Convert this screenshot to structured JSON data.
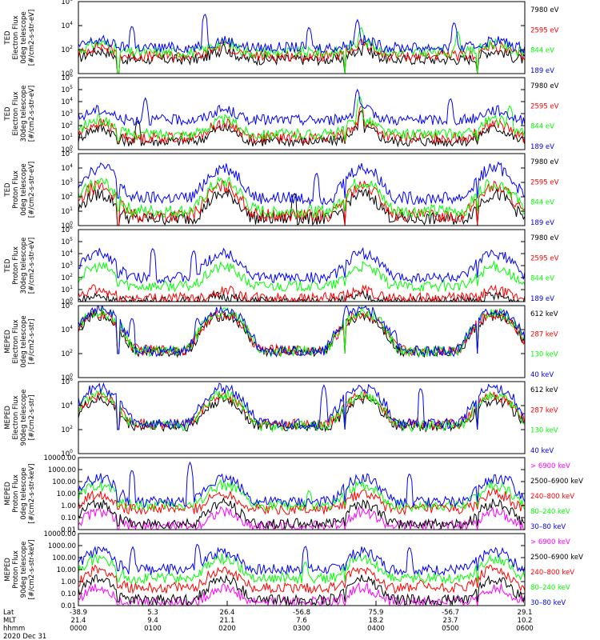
{
  "chart_data": {
    "type": "line",
    "x_start_hhmm": "0000",
    "x_end_hhmm": "0600",
    "colors": {
      "black": "#000000",
      "red": "#ff0000",
      "green": "#00ff00",
      "blue": "#0000ff",
      "magenta": "#ff00ff"
    },
    "x_axis": {
      "row_labels": [
        "Lat",
        "MLT",
        "hhmm"
      ],
      "date": "2020 Dec 31",
      "ticks": [
        {
          "lat": "-38.9",
          "mlt": "21.4",
          "hhmm": "0000"
        },
        {
          "lat": "5.3",
          "mlt": "9.4",
          "hhmm": "0100"
        },
        {
          "lat": "26.4",
          "mlt": "21.1",
          "hhmm": "0200"
        },
        {
          "lat": "-56.8",
          "mlt": "7.6",
          "hhmm": "0300"
        },
        {
          "lat": "75.9",
          "mlt": "18.2",
          "hhmm": "0400"
        },
        {
          "lat": "-56.7",
          "mlt": "23.7",
          "hhmm": "0500"
        },
        {
          "lat": "29.1",
          "mlt": "10.2",
          "hhmm": "0600"
        }
      ]
    },
    "panels": [
      {
        "id": "ted-electron-0deg",
        "ylabel": [
          "TED",
          "Electron Flux",
          "0deg telescope",
          "[#/cm2-s-str-eV]"
        ],
        "yscale": "log",
        "ylim": [
          1,
          1000000
        ],
        "tick_exps": [
          0,
          2,
          4,
          6
        ],
        "legend": [
          {
            "text": "7980 eV",
            "color": "#000000"
          },
          {
            "text": "2595 eV",
            "color": "#ff0000"
          },
          {
            "text": "844 eV",
            "color": "#00ff00"
          },
          {
            "text": "189 eV",
            "color": "#0000ff"
          }
        ],
        "series": [
          {
            "name": "7980 eV",
            "color": "#000000",
            "base": 15,
            "peak": 80,
            "floor": 0.3,
            "spikes": [
              [
                1.95,
                300
              ],
              [
                3.85,
                500
              ]
            ]
          },
          {
            "name": "2595 eV",
            "color": "#ff0000",
            "base": 30,
            "peak": 180,
            "floor": 0.4,
            "spikes": [
              [
                1.95,
                500
              ],
              [
                3.8,
                800
              ]
            ]
          },
          {
            "name": "844 eV",
            "color": "#00ff00",
            "base": 60,
            "peak": 350,
            "floor": 0.5,
            "spikes": [
              [
                3.8,
                8000
              ],
              [
                5.1,
                3000
              ]
            ]
          },
          {
            "name": "189 eV",
            "color": "#0000ff",
            "base": 150,
            "peak": 600,
            "floor": 150,
            "spikes": [
              [
                0.72,
                10000
              ],
              [
                1.7,
                100000
              ],
              [
                3.1,
                8000
              ],
              [
                3.75,
                30000
              ],
              [
                5.05,
                20000
              ]
            ]
          }
        ]
      },
      {
        "id": "ted-electron-30deg",
        "ylabel": [
          "TED",
          "Electron Flux",
          "30deg telescope",
          "[#/cm2-s-str-eV]"
        ],
        "yscale": "log",
        "ylim": [
          1,
          1000000
        ],
        "tick_exps": [
          0,
          1,
          2,
          3,
          4,
          5,
          6
        ],
        "legend": [
          {
            "text": "7980 eV",
            "color": "#000000"
          },
          {
            "text": "2595 eV",
            "color": "#ff0000"
          },
          {
            "text": "844 eV",
            "color": "#00ff00"
          },
          {
            "text": "189 eV",
            "color": "#0000ff"
          }
        ],
        "series": [
          {
            "name": "7980 eV",
            "color": "#000000",
            "base": 5,
            "peak": 60,
            "floor": 3,
            "spikes": [
              [
                0.8,
                300
              ],
              [
                3.8,
                2000
              ]
            ]
          },
          {
            "name": "2595 eV",
            "color": "#ff0000",
            "base": 10,
            "peak": 150,
            "floor": 4,
            "spikes": [
              [
                3.8,
                5000
              ]
            ]
          },
          {
            "name": "844 eV",
            "color": "#00ff00",
            "base": 20,
            "peak": 300,
            "floor": 5,
            "spikes": [
              [
                3.78,
                30000
              ],
              [
                5.8,
                5000
              ]
            ]
          },
          {
            "name": "189 eV",
            "color": "#0000ff",
            "base": 300,
            "peak": 2000,
            "floor": 300,
            "spikes": [
              [
                0.9,
                20000
              ],
              [
                3.75,
                100000
              ],
              [
                5.0,
                20000
              ]
            ]
          }
        ]
      },
      {
        "id": "ted-proton-0deg",
        "ylabel": [
          "TED",
          "Proton Flux",
          "0deg telescope",
          "[#/cm2-s-str-eV]"
        ],
        "yscale": "log",
        "ylim": [
          1,
          100000
        ],
        "tick_exps": [
          0,
          1,
          2,
          3,
          4,
          5
        ],
        "legend": [
          {
            "text": "7980 eV",
            "color": "#000000"
          },
          {
            "text": "2595 eV",
            "color": "#ff0000"
          },
          {
            "text": "844 eV",
            "color": "#00ff00"
          },
          {
            "text": "189 eV",
            "color": "#0000ff"
          }
        ],
        "series": [
          {
            "name": "7980 eV",
            "color": "#000000",
            "base": 3,
            "peak": 150,
            "floor": 0.5,
            "spikes": [
              [
                2.9,
                200
              ]
            ]
          },
          {
            "name": "2595 eV",
            "color": "#ff0000",
            "base": 5,
            "peak": 500,
            "floor": 0.6,
            "spikes": []
          },
          {
            "name": "844 eV",
            "color": "#00ff00",
            "base": 10,
            "peak": 1000,
            "floor": 10,
            "spikes": []
          },
          {
            "name": "189 eV",
            "color": "#0000ff",
            "base": 80,
            "peak": 10000,
            "floor": 80,
            "spikes": [
              [
                0.4,
                20000
              ],
              [
                3.2,
                5000
              ]
            ]
          }
        ]
      },
      {
        "id": "ted-proton-30deg",
        "ylabel": [
          "TED",
          "Proton Flux",
          "30deg telescope",
          "[#/cm2-s-str-eV]"
        ],
        "yscale": "log",
        "ylim": [
          1,
          1000000
        ],
        "tick_exps": [
          0,
          1,
          2,
          3,
          4,
          5,
          6
        ],
        "legend": [
          {
            "text": "7980 eV",
            "color": "#000000"
          },
          {
            "text": "2595 eV",
            "color": "#ff0000"
          },
          {
            "text": "844 eV",
            "color": "#00ff00"
          },
          {
            "text": "189 eV",
            "color": "#0000ff"
          }
        ],
        "series": [
          {
            "name": "7980 eV",
            "color": "#000000",
            "base": 1,
            "peak": 3,
            "floor": 0.5,
            "spikes": []
          },
          {
            "name": "2595 eV",
            "color": "#ff0000",
            "base": 2,
            "peak": 8,
            "floor": 0.6,
            "spikes": [
              [
                0.2,
                30
              ],
              [
                2.05,
                20
              ]
            ]
          },
          {
            "name": "844 eV",
            "color": "#00ff00",
            "base": 20,
            "peak": 800,
            "floor": 20,
            "spikes": []
          },
          {
            "name": "189 eV",
            "color": "#0000ff",
            "base": 100,
            "peak": 10000,
            "floor": 100,
            "spikes": [
              [
                1.0,
                30000
              ],
              [
                1.55,
                20000
              ]
            ]
          }
        ]
      },
      {
        "id": "meped-electron-0deg",
        "ylabel": [
          "MEPED",
          "Electron Flux",
          "0deg telescope",
          "[#/cm2-s-str]"
        ],
        "yscale": "log",
        "ylim": [
          1,
          1000000
        ],
        "tick_exps": [
          0,
          2,
          4,
          6
        ],
        "legend": [
          {
            "text": "612 keV",
            "color": "#000000"
          },
          {
            "text": "287 keV",
            "color": "#ff0000"
          },
          {
            "text": "130 keV",
            "color": "#00ff00"
          },
          {
            "text": "40 keV",
            "color": "#0000ff"
          }
        ],
        "series": [
          {
            "name": "612 keV",
            "color": "#000000",
            "base": 150,
            "peak": 150000,
            "floor": 100,
            "spikes": []
          },
          {
            "name": "287 keV",
            "color": "#ff0000",
            "base": 200,
            "peak": 200000,
            "floor": 100,
            "spikes": [
              [
                5.2,
                1000
              ]
            ]
          },
          {
            "name": "130 keV",
            "color": "#00ff00",
            "base": 150,
            "peak": 300000,
            "floor": 100,
            "spikes": []
          },
          {
            "name": "40 keV",
            "color": "#0000ff",
            "base": 150,
            "peak": 500000,
            "floor": 100,
            "spikes": [
              [
                0.72,
                100000
              ],
              [
                1.6,
                100000
              ],
              [
                3.6,
                1000000
              ],
              [
                4.25,
                10000
              ]
            ]
          }
        ]
      },
      {
        "id": "meped-electron-90deg",
        "ylabel": [
          "MEPED",
          "Electron Flux",
          "90deg telescope",
          "[#/cm2-s-str]"
        ],
        "yscale": "log",
        "ylim": [
          1,
          1000000
        ],
        "tick_exps": [
          0,
          2,
          4,
          6
        ],
        "legend": [
          {
            "text": "612 keV",
            "color": "#000000"
          },
          {
            "text": "287 keV",
            "color": "#ff0000"
          },
          {
            "text": "130 keV",
            "color": "#00ff00"
          },
          {
            "text": "40 keV",
            "color": "#0000ff"
          }
        ],
        "series": [
          {
            "name": "612 keV",
            "color": "#000000",
            "base": 200,
            "peak": 30000,
            "floor": 100,
            "spikes": []
          },
          {
            "name": "287 keV",
            "color": "#ff0000",
            "base": 300,
            "peak": 60000,
            "floor": 100,
            "spikes": []
          },
          {
            "name": "130 keV",
            "color": "#00ff00",
            "base": 200,
            "peak": 80000,
            "floor": 100,
            "spikes": []
          },
          {
            "name": "40 keV",
            "color": "#0000ff",
            "base": 300,
            "peak": 300000,
            "floor": 100,
            "spikes": [
              [
                3.3,
                500000
              ],
              [
                4.6,
                300000
              ],
              [
                5.5,
                200000
              ]
            ]
          }
        ]
      },
      {
        "id": "meped-proton-0deg",
        "ylabel": [
          "MEPED",
          "Proton Flux",
          "0deg telescope",
          "[#/cm2-s-str-keV]"
        ],
        "yscale": "log",
        "ylim": [
          0.01,
          10000
        ],
        "tick_exps": [
          -2,
          -1,
          0,
          1,
          2,
          3,
          4
        ],
        "tick_labels": [
          "0.01",
          "0.10",
          "1.00",
          "10.00",
          "100.00",
          "1000.00",
          "10000.00"
        ],
        "legend": [
          {
            "text": "> 6900 keV",
            "color": "#ff00ff"
          },
          {
            "text": "2500–6900 keV",
            "color": "#000000"
          },
          {
            "text": "240–800 keV",
            "color": "#ff0000"
          },
          {
            "text": "80–240 keV",
            "color": "#00ff00"
          },
          {
            "text": "30–80 keV",
            "color": "#0000ff"
          }
        ],
        "series": [
          {
            "name": "> 6900 keV",
            "color": "#ff00ff",
            "base": 0.02,
            "peak": 0.3,
            "floor": 0.01,
            "spikes": []
          },
          {
            "name": "2500–6900 keV",
            "color": "#000000",
            "base": 0.03,
            "peak": 1.5,
            "floor": 0.02,
            "spikes": []
          },
          {
            "name": "240–800 keV",
            "color": "#ff0000",
            "base": 0.5,
            "peak": 10,
            "floor": 0.5,
            "spikes": []
          },
          {
            "name": "80–240 keV",
            "color": "#00ff00",
            "base": 1,
            "peak": 50,
            "floor": 0.8,
            "spikes": [
              [
                3.1,
                20
              ]
            ]
          },
          {
            "name": "30–80 keV",
            "color": "#0000ff",
            "base": 2,
            "peak": 200,
            "floor": 2,
            "spikes": [
              [
                0.72,
                1000
              ],
              [
                1.5,
                4000
              ],
              [
                4.45,
                500
              ],
              [
                5.8,
                300
              ]
            ]
          }
        ]
      },
      {
        "id": "meped-proton-90deg",
        "ylabel": [
          "MEPED",
          "Proton Flux",
          "90deg telescope",
          "[#/cm2-s-str-keV]"
        ],
        "yscale": "log",
        "ylim": [
          0.01,
          10000
        ],
        "tick_exps": [
          -2,
          -1,
          0,
          1,
          2,
          3,
          4
        ],
        "tick_labels": [
          "0.01",
          "0.10",
          "1.00",
          "10.00",
          "100.00",
          "1000.00",
          "10000.00"
        ],
        "legend": [
          {
            "text": "> 6900 keV",
            "color": "#ff00ff"
          },
          {
            "text": "2500–6900 keV",
            "color": "#000000"
          },
          {
            "text": "240–800 keV",
            "color": "#ff0000"
          },
          {
            "text": "80–240 keV",
            "color": "#00ff00"
          },
          {
            "text": "30–80 keV",
            "color": "#0000ff"
          }
        ],
        "series": [
          {
            "name": "> 6900 keV",
            "color": "#ff00ff",
            "base": 0.02,
            "peak": 0.3,
            "floor": 0.01,
            "spikes": []
          },
          {
            "name": "2500–6900 keV",
            "color": "#000000",
            "base": 0.03,
            "peak": 1.5,
            "floor": 0.02,
            "spikes": []
          },
          {
            "name": "240–800 keV",
            "color": "#ff0000",
            "base": 0.3,
            "peak": 10,
            "floor": 0.3,
            "spikes": [
              [
                4.6,
                1.5
              ]
            ]
          },
          {
            "name": "80–240 keV",
            "color": "#00ff00",
            "base": 2,
            "peak": 80,
            "floor": 1,
            "spikes": [
              [
                3.05,
                50
              ]
            ]
          },
          {
            "name": "30–80 keV",
            "color": "#0000ff",
            "base": 10,
            "peak": 300,
            "floor": 8,
            "spikes": [
              [
                0.73,
                800
              ],
              [
                1.6,
                1500
              ],
              [
                3.05,
                1000
              ],
              [
                4.45,
                800
              ],
              [
                5.75,
                300
              ]
            ]
          }
        ]
      }
    ]
  }
}
